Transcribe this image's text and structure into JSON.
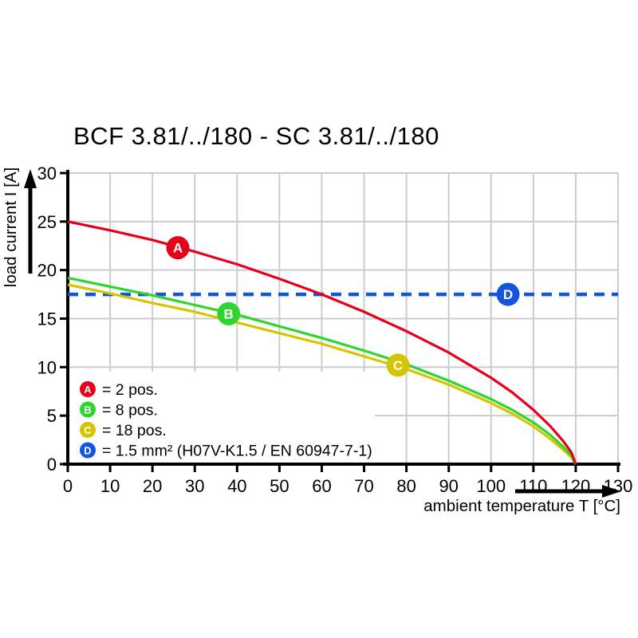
{
  "title": "BCF 3.81/../180 - SC 3.81/../180",
  "legend": [
    {
      "id": "A",
      "label": "= 2 pos.",
      "color": "#e6001a"
    },
    {
      "id": "B",
      "label": "= 8 pos.",
      "color": "#2ed52e"
    },
    {
      "id": "C",
      "label": "= 18 pos.",
      "color": "#d4c500"
    },
    {
      "id": "D",
      "label": "= 1.5 mm² (H07V-K1.5 / EN 60947-7-1)",
      "color": "#1455e0"
    }
  ],
  "chart_data": {
    "type": "line",
    "title": "BCF 3.81/../180 - SC 3.81/../180",
    "xlabel": "ambient temperature T [°C]",
    "ylabel": "load current I [A]",
    "xlim": [
      0,
      130
    ],
    "ylim": [
      0,
      30
    ],
    "x_ticks": [
      0,
      10,
      20,
      30,
      40,
      50,
      60,
      70,
      80,
      90,
      100,
      110,
      120,
      130
    ],
    "y_ticks": [
      0,
      5,
      10,
      15,
      20,
      25,
      30
    ],
    "grid": true,
    "grid_color": "#cccccc",
    "legend_position": "lower-left",
    "series": [
      {
        "id": "D",
        "name": "D = 1.5 mm² (H07V-K1.5 / EN 60947-7-1)",
        "color": "#1455e0",
        "style": "dashed",
        "width": 4.5,
        "points": [
          [
            0,
            17.5
          ],
          [
            130,
            17.5
          ]
        ]
      },
      {
        "id": "C",
        "name": "C = 18 pos.",
        "color": "#d4c500",
        "style": "solid",
        "width": 3.2,
        "points": [
          [
            0,
            18.5
          ],
          [
            10,
            17.6
          ],
          [
            20,
            16.6
          ],
          [
            30,
            15.7
          ],
          [
            40,
            14.6
          ],
          [
            50,
            13.5
          ],
          [
            60,
            12.4
          ],
          [
            70,
            11.1
          ],
          [
            80,
            9.8
          ],
          [
            90,
            8.2
          ],
          [
            100,
            6.3
          ],
          [
            105,
            5.2
          ],
          [
            110,
            3.9
          ],
          [
            114,
            2.6
          ],
          [
            117,
            1.5
          ],
          [
            119,
            0.7
          ],
          [
            120,
            0
          ]
        ]
      },
      {
        "id": "B",
        "name": "B = 8 pos.",
        "color": "#2ed52e",
        "style": "solid",
        "width": 3.2,
        "points": [
          [
            0,
            19.2
          ],
          [
            10,
            18.3
          ],
          [
            20,
            17.4
          ],
          [
            30,
            16.4
          ],
          [
            40,
            15.4
          ],
          [
            50,
            14.2
          ],
          [
            60,
            13.0
          ],
          [
            70,
            11.7
          ],
          [
            80,
            10.3
          ],
          [
            90,
            8.6
          ],
          [
            100,
            6.7
          ],
          [
            105,
            5.6
          ],
          [
            110,
            4.3
          ],
          [
            114,
            3.0
          ],
          [
            117,
            1.8
          ],
          [
            119,
            0.9
          ],
          [
            120,
            0
          ]
        ]
      },
      {
        "id": "A",
        "name": "A = 2 pos.",
        "color": "#e6001a",
        "style": "solid",
        "width": 3.2,
        "points": [
          [
            0,
            25.0
          ],
          [
            10,
            24.1
          ],
          [
            20,
            23.1
          ],
          [
            30,
            21.9
          ],
          [
            40,
            20.6
          ],
          [
            50,
            19.1
          ],
          [
            60,
            17.5
          ],
          [
            70,
            15.7
          ],
          [
            80,
            13.7
          ],
          [
            90,
            11.5
          ],
          [
            100,
            8.9
          ],
          [
            105,
            7.4
          ],
          [
            110,
            5.6
          ],
          [
            114,
            3.9
          ],
          [
            117,
            2.4
          ],
          [
            119,
            1.2
          ],
          [
            120,
            0
          ]
        ]
      }
    ],
    "markers": [
      {
        "id": "A",
        "x": 26,
        "y": 22.3,
        "color": "#e6001a"
      },
      {
        "id": "B",
        "x": 38,
        "y": 15.5,
        "color": "#2ed52e"
      },
      {
        "id": "C",
        "x": 78,
        "y": 10.2,
        "color": "#d4c500"
      },
      {
        "id": "D",
        "x": 104,
        "y": 17.5,
        "color": "#1455e0"
      }
    ]
  }
}
